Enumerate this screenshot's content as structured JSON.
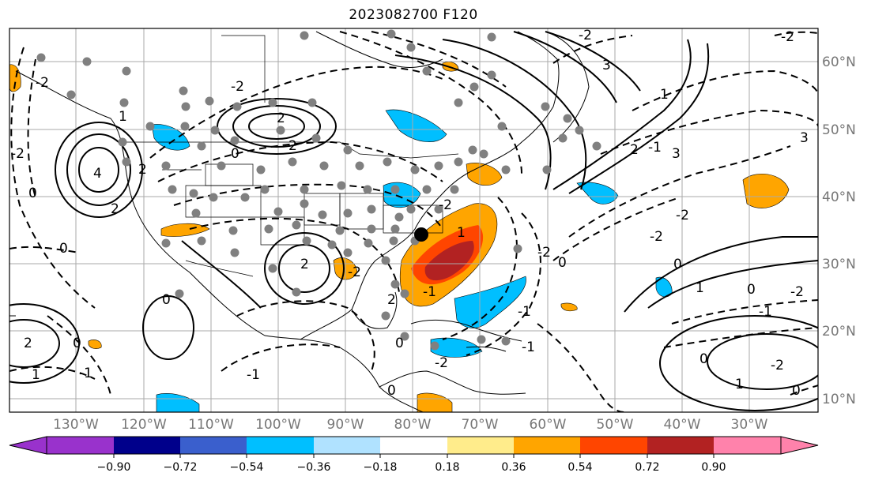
{
  "title": "2023082700 F120",
  "map": {
    "lon_labels": [
      "130°W",
      "120°W",
      "110°W",
      "100°W",
      "90°W",
      "80°W",
      "70°W",
      "60°W",
      "50°W",
      "40°W",
      "30°W"
    ],
    "lat_labels": [
      "60°N",
      "50°N",
      "40°N",
      "30°N",
      "20°N",
      "10°N"
    ],
    "contour_labels": [
      "-2",
      "3",
      "-2",
      "1",
      "2",
      "-2",
      "2",
      "2",
      "4",
      "0",
      "2",
      "0",
      "1",
      "2",
      "-2",
      "3",
      "1",
      "-1",
      "0",
      "2",
      "-2",
      "3",
      "0",
      "0",
      "-2",
      "-1",
      "-2",
      "0",
      "-2",
      "2",
      "1",
      "0",
      "-1",
      "1",
      "0",
      "-1",
      "0",
      "-2",
      "2",
      "-2",
      "-1",
      "1",
      "0",
      "-1",
      "-2",
      "-2",
      "-2",
      "-1",
      "0",
      "0"
    ],
    "colors": {
      "land_outline": "#000000",
      "grid": "#aaaaaa",
      "station_dot": "#808080",
      "highlight_point": "#000000"
    }
  },
  "colorbar": {
    "ticks": [
      "−0.90",
      "−0.72",
      "−0.54",
      "−0.36",
      "−0.18",
      "0.18",
      "0.36",
      "0.54",
      "0.72",
      "0.90"
    ],
    "colors": [
      "#9932cc",
      "#00008b",
      "#3a5fcd",
      "#00bfff",
      "#b0e2ff",
      "#ffffff",
      "#ffec8b",
      "#ffa500",
      "#ff4500",
      "#b22222",
      "#ff82ab"
    ]
  }
}
